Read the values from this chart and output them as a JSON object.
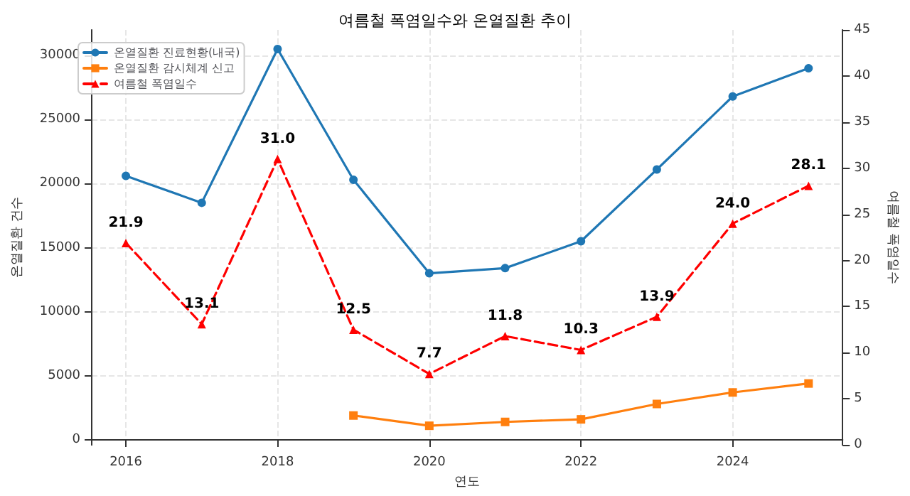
{
  "chart_data": {
    "type": "line",
    "title": "여름철 폭염일수와 온열질환 추이",
    "xlabel": "연도",
    "ylabel": "온열질환 건수",
    "y2label": "여름철 폭염일수",
    "x": [
      2016,
      2017,
      2018,
      2019,
      2020,
      2021,
      2022,
      2023,
      2024,
      2025
    ],
    "series": [
      {
        "name": "온열질환 진료현황(내국)",
        "color": "#1f77b4",
        "marker": "circle",
        "line_style": "solid",
        "values": [
          20600,
          18500,
          30500,
          20300,
          13000,
          13400,
          15500,
          21100,
          26800,
          29000
        ]
      },
      {
        "name": "온열질환 감시체계 신고",
        "color": "#ff7f0e",
        "marker": "square",
        "line_style": "solid",
        "values": [
          null,
          null,
          null,
          1900,
          1100,
          1400,
          1600,
          2800,
          3700,
          4400
        ]
      },
      {
        "name": "여름철 폭염일수",
        "color": "#ff0000",
        "marker": "triangle",
        "line_style": "dashed",
        "axis": "y2",
        "value_labels": [
          "21.9",
          "13.1",
          "31.0",
          "12.5",
          "7.7",
          "11.8",
          "10.3",
          "13.9",
          "24.0",
          "28.1"
        ],
        "values": [
          21.9,
          13.1,
          31.0,
          12.5,
          7.7,
          11.8,
          10.3,
          13.9,
          24.0,
          28.1
        ]
      }
    ],
    "xlim": [
      2015.55,
      2025.45
    ],
    "xticks": [
      2016,
      2018,
      2020,
      2022,
      2024
    ],
    "ylim": [
      -400,
      32000
    ],
    "yticks": [
      0,
      5000,
      10000,
      15000,
      20000,
      25000,
      30000
    ],
    "y2lim": [
      0,
      45
    ],
    "y2ticks": [
      0,
      5,
      10,
      15,
      20,
      25,
      30,
      35,
      40,
      45
    ],
    "grid": true,
    "legend": "top left"
  }
}
